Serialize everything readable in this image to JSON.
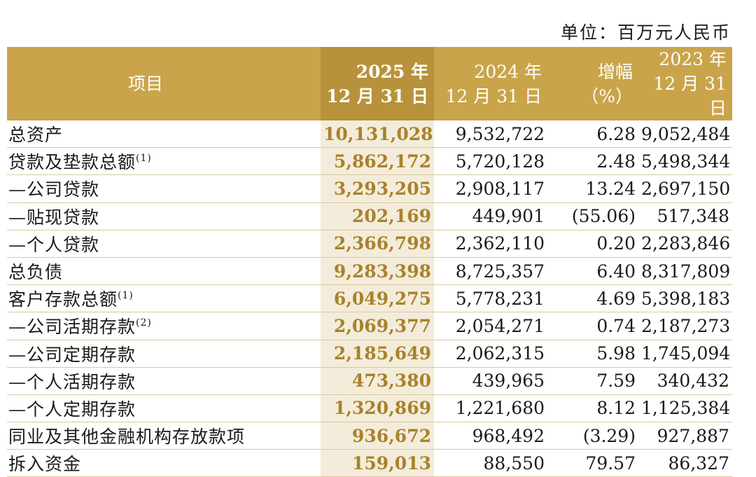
{
  "unit": "单位：百万元人民币",
  "header": {
    "item": "项目",
    "col_2025": [
      "2025 年",
      "12 月 31 日"
    ],
    "col_2024": [
      "2024 年",
      "12 月 31 日"
    ],
    "col_change": [
      "增幅",
      "（%）"
    ],
    "col_2023": [
      "2023 年",
      "12 月 31 日"
    ]
  },
  "rows": [
    {
      "label": "总资产",
      "note": "",
      "v2025": "10,131,028",
      "v2024": "9,532,722",
      "change": "6.28",
      "v2023": "9,052,484"
    },
    {
      "label": "贷款及垫款总额",
      "note": "(1)",
      "v2025": "5,862,172",
      "v2024": "5,720,128",
      "change": "2.48",
      "v2023": "5,498,344"
    },
    {
      "label": "—公司贷款",
      "note": "",
      "v2025": "3,293,205",
      "v2024": "2,908,117",
      "change": "13.24",
      "v2023": "2,697,150"
    },
    {
      "label": "—贴现贷款",
      "note": "",
      "v2025": "202,169",
      "v2024": "449,901",
      "change": "(55.06)",
      "v2023": "517,348"
    },
    {
      "label": "—个人贷款",
      "note": "",
      "v2025": "2,366,798",
      "v2024": "2,362,110",
      "change": "0.20",
      "v2023": "2,283,846"
    },
    {
      "label": "总负债",
      "note": "",
      "v2025": "9,283,398",
      "v2024": "8,725,357",
      "change": "6.40",
      "v2023": "8,317,809"
    },
    {
      "label": "客户存款总额",
      "note": "(1)",
      "v2025": "6,049,275",
      "v2024": "5,778,231",
      "change": "4.69",
      "v2023": "5,398,183"
    },
    {
      "label": "—公司活期存款",
      "note": "(2)",
      "v2025": "2,069,377",
      "v2024": "2,054,271",
      "change": "0.74",
      "v2023": "2,187,273"
    },
    {
      "label": "—公司定期存款",
      "note": "",
      "v2025": "2,185,649",
      "v2024": "2,062,315",
      "change": "5.98",
      "v2023": "1,745,094"
    },
    {
      "label": "—个人活期存款",
      "note": "",
      "v2025": "473,380",
      "v2024": "439,965",
      "change": "7.59",
      "v2023": "340,432"
    },
    {
      "label": "—个人定期存款",
      "note": "",
      "v2025": "1,320,869",
      "v2024": "1,221,680",
      "change": "8.12",
      "v2023": "1,125,384"
    },
    {
      "label": "同业及其他金融机构存放款项",
      "note": "",
      "v2025": "936,672",
      "v2024": "968,492",
      "change": "(3.29)",
      "v2023": "927,887"
    },
    {
      "label": "拆入资金",
      "note": "",
      "v2025": "159,013",
      "v2024": "88,550",
      "change": "79.57",
      "v2023": "86,327"
    }
  ]
}
